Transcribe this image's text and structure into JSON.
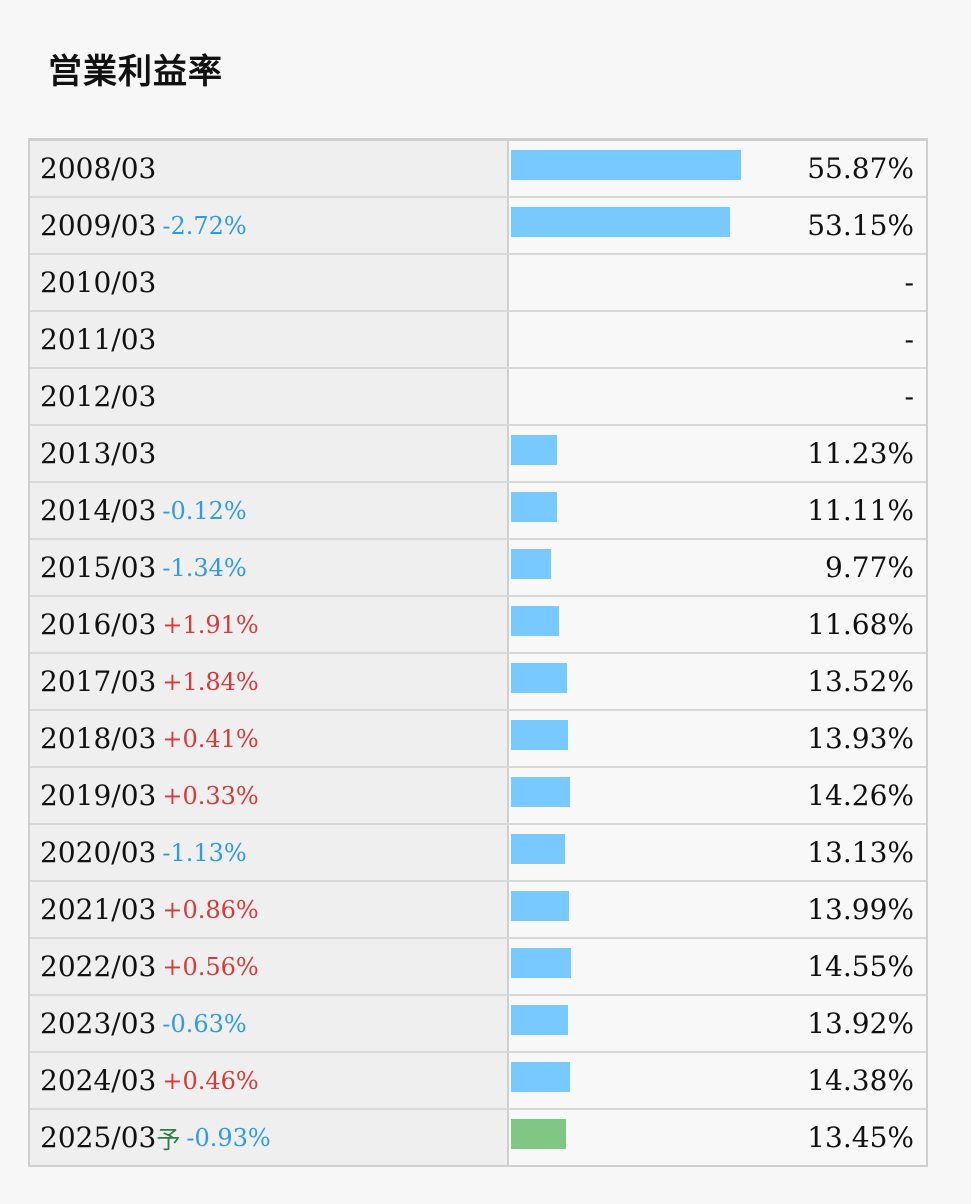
{
  "chart_data": {
    "type": "bar",
    "title": "営業利益率",
    "xlim": [
      0,
      100
    ],
    "colors": {
      "actual_bar": "#77c9ff",
      "forecast_bar": "#80c684",
      "negative_change": "#2f9be6",
      "positive_change": "#d63b3b",
      "forecast_mark": "#2e7d46"
    },
    "rows": [
      {
        "period": "2008/03",
        "change": "",
        "forecast_mark": "",
        "value": 55.87,
        "value_label": "55.87%"
      },
      {
        "period": "2009/03",
        "change": "-2.72%",
        "forecast_mark": "",
        "value": 53.15,
        "value_label": "53.15%"
      },
      {
        "period": "2010/03",
        "change": "",
        "forecast_mark": "",
        "value": null,
        "value_label": "-"
      },
      {
        "period": "2011/03",
        "change": "",
        "forecast_mark": "",
        "value": null,
        "value_label": "-"
      },
      {
        "period": "2012/03",
        "change": "",
        "forecast_mark": "",
        "value": null,
        "value_label": "-"
      },
      {
        "period": "2013/03",
        "change": "",
        "forecast_mark": "",
        "value": 11.23,
        "value_label": "11.23%"
      },
      {
        "period": "2014/03",
        "change": "-0.12%",
        "forecast_mark": "",
        "value": 11.11,
        "value_label": "11.11%"
      },
      {
        "period": "2015/03",
        "change": "-1.34%",
        "forecast_mark": "",
        "value": 9.77,
        "value_label": "9.77%"
      },
      {
        "period": "2016/03",
        "change": "+1.91%",
        "forecast_mark": "",
        "value": 11.68,
        "value_label": "11.68%"
      },
      {
        "period": "2017/03",
        "change": "+1.84%",
        "forecast_mark": "",
        "value": 13.52,
        "value_label": "13.52%"
      },
      {
        "period": "2018/03",
        "change": "+0.41%",
        "forecast_mark": "",
        "value": 13.93,
        "value_label": "13.93%"
      },
      {
        "period": "2019/03",
        "change": "+0.33%",
        "forecast_mark": "",
        "value": 14.26,
        "value_label": "14.26%"
      },
      {
        "period": "2020/03",
        "change": "-1.13%",
        "forecast_mark": "",
        "value": 13.13,
        "value_label": "13.13%"
      },
      {
        "period": "2021/03",
        "change": "+0.86%",
        "forecast_mark": "",
        "value": 13.99,
        "value_label": "13.99%"
      },
      {
        "period": "2022/03",
        "change": "+0.56%",
        "forecast_mark": "",
        "value": 14.55,
        "value_label": "14.55%"
      },
      {
        "period": "2023/03",
        "change": "-0.63%",
        "forecast_mark": "",
        "value": 13.92,
        "value_label": "13.92%"
      },
      {
        "period": "2024/03",
        "change": "+0.46%",
        "forecast_mark": "",
        "value": 14.38,
        "value_label": "14.38%"
      },
      {
        "period": "2025/03",
        "change": "-0.93%",
        "forecast_mark": "予",
        "value": 13.45,
        "value_label": "13.45%"
      }
    ]
  }
}
